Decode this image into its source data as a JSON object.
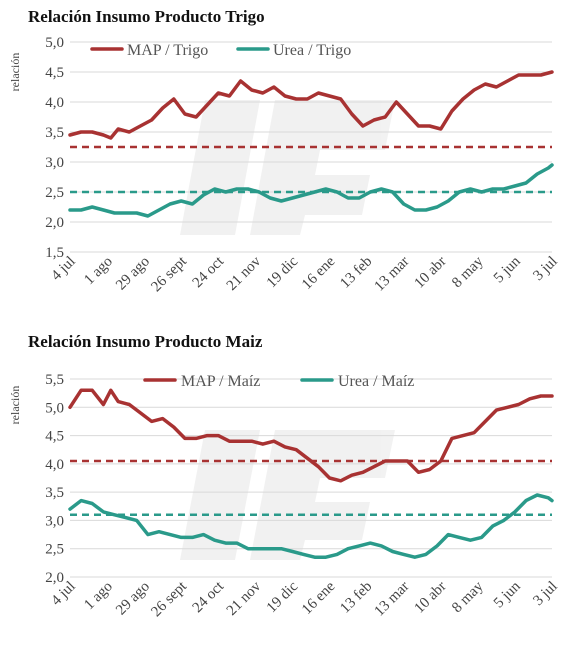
{
  "chart_data": [
    {
      "type": "line",
      "title": "Relación Insumo Producto Trigo",
      "ylabel": "relación",
      "xlabel": "",
      "ylim": [
        1.5,
        5.0
      ],
      "yticks": [
        "1,5",
        "2,0",
        "2,5",
        "3,0",
        "3,5",
        "4,0",
        "4,5",
        "5,0"
      ],
      "categories": [
        "4 jul",
        "1 ago",
        "29 ago",
        "26 sept",
        "24 oct",
        "21 nov",
        "19 dic",
        "16 ene",
        "13 feb",
        "13 mar",
        "10 abr",
        "8 may",
        "5 jun",
        "3 jul"
      ],
      "grid": true,
      "legend": "top",
      "series": [
        {
          "name": "MAP / Trigo",
          "color": "#a83232",
          "style": "solid",
          "x": [
            0,
            0.3,
            0.6,
            0.9,
            1.1,
            1.3,
            1.6,
            1.9,
            2.2,
            2.5,
            2.8,
            3.1,
            3.4,
            3.7,
            4.0,
            4.3,
            4.6,
            4.9,
            5.2,
            5.5,
            5.8,
            6.1,
            6.4,
            6.7,
            7.0,
            7.3,
            7.6,
            7.9,
            8.2,
            8.5,
            8.8,
            9.1,
            9.4,
            9.7,
            10.0,
            10.3,
            10.6,
            10.9,
            11.2,
            11.5,
            11.8,
            12.1,
            12.4,
            12.7,
            13.0
          ],
          "values": [
            3.45,
            3.5,
            3.5,
            3.45,
            3.4,
            3.55,
            3.5,
            3.6,
            3.7,
            3.9,
            4.05,
            3.8,
            3.75,
            3.95,
            4.15,
            4.1,
            4.35,
            4.2,
            4.15,
            4.25,
            4.1,
            4.05,
            4.05,
            4.15,
            4.1,
            4.05,
            3.8,
            3.6,
            3.7,
            3.75,
            4.0,
            3.8,
            3.6,
            3.6,
            3.55,
            3.85,
            4.05,
            4.2,
            4.3,
            4.25,
            4.35,
            4.45,
            4.45,
            4.45,
            4.5
          ]
        },
        {
          "name": "Urea / Trigo",
          "color": "#2a9a8a",
          "style": "solid",
          "x": [
            0,
            0.3,
            0.6,
            0.9,
            1.2,
            1.5,
            1.8,
            2.1,
            2.4,
            2.7,
            3.0,
            3.3,
            3.6,
            3.9,
            4.2,
            4.5,
            4.8,
            5.1,
            5.4,
            5.7,
            6.0,
            6.3,
            6.6,
            6.9,
            7.2,
            7.5,
            7.8,
            8.1,
            8.4,
            8.7,
            9.0,
            9.3,
            9.6,
            9.9,
            10.2,
            10.5,
            10.8,
            11.1,
            11.4,
            11.7,
            12.0,
            12.3,
            12.6,
            12.9,
            13.0
          ],
          "values": [
            2.2,
            2.2,
            2.25,
            2.2,
            2.15,
            2.15,
            2.15,
            2.1,
            2.2,
            2.3,
            2.35,
            2.3,
            2.45,
            2.55,
            2.5,
            2.55,
            2.55,
            2.5,
            2.4,
            2.35,
            2.4,
            2.45,
            2.5,
            2.55,
            2.5,
            2.4,
            2.4,
            2.5,
            2.55,
            2.5,
            2.3,
            2.2,
            2.2,
            2.25,
            2.35,
            2.5,
            2.55,
            2.5,
            2.55,
            2.55,
            2.6,
            2.65,
            2.8,
            2.9,
            2.95
          ]
        },
        {
          "color": "#a83232",
          "style": "dashed",
          "x": [
            0,
            13
          ],
          "values": [
            3.25,
            3.25
          ]
        },
        {
          "color": "#2a9a8a",
          "style": "dashed",
          "x": [
            0,
            13
          ],
          "values": [
            2.5,
            2.5
          ]
        }
      ]
    },
    {
      "type": "line",
      "title": "Relación Insumo Producto Maiz",
      "ylabel": "relación",
      "xlabel": "",
      "ylim": [
        2.0,
        5.5
      ],
      "yticks": [
        "2,0",
        "2,5",
        "3,0",
        "3,5",
        "4,0",
        "4,5",
        "5,0",
        "5,5"
      ],
      "categories": [
        "4 jul",
        "1 ago",
        "29 ago",
        "26 sept",
        "24 oct",
        "21 nov",
        "19 dic",
        "16 ene",
        "13 feb",
        "13 mar",
        "10 abr",
        "8 may",
        "5 jun",
        "3 jul"
      ],
      "grid": true,
      "legend": "top",
      "series": [
        {
          "name": "MAP / Maíz",
          "color": "#a83232",
          "style": "solid",
          "x": [
            0,
            0.3,
            0.6,
            0.9,
            1.1,
            1.3,
            1.6,
            1.9,
            2.2,
            2.5,
            2.8,
            3.1,
            3.4,
            3.7,
            4.0,
            4.3,
            4.6,
            4.9,
            5.2,
            5.5,
            5.8,
            6.1,
            6.4,
            6.7,
            7.0,
            7.3,
            7.6,
            7.9,
            8.2,
            8.5,
            8.8,
            9.1,
            9.4,
            9.7,
            10.0,
            10.3,
            10.6,
            10.9,
            11.2,
            11.5,
            11.8,
            12.1,
            12.4,
            12.7,
            13.0
          ],
          "values": [
            5.0,
            5.3,
            5.3,
            5.05,
            5.3,
            5.1,
            5.05,
            4.9,
            4.75,
            4.8,
            4.65,
            4.45,
            4.45,
            4.5,
            4.5,
            4.4,
            4.4,
            4.4,
            4.35,
            4.4,
            4.3,
            4.25,
            4.1,
            3.95,
            3.75,
            3.7,
            3.8,
            3.85,
            3.95,
            4.05,
            4.05,
            4.05,
            3.85,
            3.9,
            4.05,
            4.45,
            4.5,
            4.55,
            4.75,
            4.95,
            5.0,
            5.05,
            5.15,
            5.2,
            5.2
          ]
        },
        {
          "name": "Urea / Maíz",
          "color": "#2a9a8a",
          "style": "solid",
          "x": [
            0,
            0.3,
            0.6,
            0.9,
            1.2,
            1.5,
            1.8,
            2.1,
            2.4,
            2.7,
            3.0,
            3.3,
            3.6,
            3.9,
            4.2,
            4.5,
            4.8,
            5.1,
            5.4,
            5.7,
            6.0,
            6.3,
            6.6,
            6.9,
            7.2,
            7.5,
            7.8,
            8.1,
            8.4,
            8.7,
            9.0,
            9.3,
            9.6,
            9.9,
            10.2,
            10.5,
            10.8,
            11.1,
            11.4,
            11.7,
            12.0,
            12.3,
            12.6,
            12.9,
            13.0
          ],
          "values": [
            3.2,
            3.35,
            3.3,
            3.15,
            3.1,
            3.05,
            3.0,
            2.75,
            2.8,
            2.75,
            2.7,
            2.7,
            2.75,
            2.65,
            2.6,
            2.6,
            2.5,
            2.5,
            2.5,
            2.5,
            2.45,
            2.4,
            2.35,
            2.35,
            2.4,
            2.5,
            2.55,
            2.6,
            2.55,
            2.45,
            2.4,
            2.35,
            2.4,
            2.55,
            2.75,
            2.7,
            2.65,
            2.7,
            2.9,
            3.0,
            3.15,
            3.35,
            3.45,
            3.4,
            3.35
          ]
        },
        {
          "color": "#a83232",
          "style": "dashed",
          "x": [
            0,
            13
          ],
          "values": [
            4.05,
            4.05
          ]
        },
        {
          "color": "#2a9a8a",
          "style": "dashed",
          "x": [
            0,
            13
          ],
          "values": [
            3.1,
            3.1
          ]
        }
      ]
    }
  ]
}
